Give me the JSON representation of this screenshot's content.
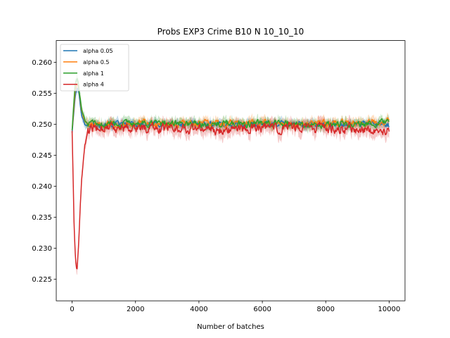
{
  "chart_data": {
    "type": "line",
    "title": "Probs EXP3 Crime B10 N 10_10_10",
    "xlabel": "Number of batches",
    "ylabel": "",
    "xlim": [
      -500,
      10500
    ],
    "ylim": [
      0.2215,
      0.2635
    ],
    "x_ticks": [
      0,
      2000,
      4000,
      6000,
      8000,
      10000
    ],
    "x_tick_labels": [
      "0",
      "2000",
      "4000",
      "6000",
      "8000",
      "10000"
    ],
    "y_ticks": [
      0.225,
      0.23,
      0.235,
      0.24,
      0.245,
      0.25,
      0.255,
      0.26
    ],
    "y_tick_labels": [
      "0.225",
      "0.230",
      "0.235",
      "0.240",
      "0.245",
      "0.250",
      "0.255",
      "0.260"
    ],
    "grid": false,
    "legend_position": "top-left",
    "confidence_band": true,
    "series": [
      {
        "name": "alpha 0.05",
        "color": "#1f77b4",
        "x": [
          0,
          50,
          100,
          150,
          200,
          250,
          300,
          400,
          500,
          700,
          1000,
          2000,
          3000,
          4000,
          5000,
          6000,
          7000,
          8000,
          9000,
          10000
        ],
        "y": [
          0.2487,
          0.2515,
          0.2545,
          0.2558,
          0.2555,
          0.2535,
          0.2515,
          0.25,
          0.2498,
          0.25,
          0.25,
          0.25,
          0.25,
          0.2501,
          0.25,
          0.2501,
          0.25,
          0.25,
          0.2501,
          0.25
        ]
      },
      {
        "name": "alpha 0.5",
        "color": "#ff7f0e",
        "x": [
          0,
          50,
          100,
          150,
          200,
          250,
          300,
          400,
          500,
          700,
          1000,
          2000,
          3000,
          4000,
          5000,
          6000,
          7000,
          8000,
          9000,
          10000
        ],
        "y": [
          0.249,
          0.2522,
          0.2555,
          0.2565,
          0.256,
          0.254,
          0.252,
          0.2505,
          0.25,
          0.2499,
          0.25,
          0.2502,
          0.25,
          0.2501,
          0.25,
          0.2502,
          0.25,
          0.2501,
          0.2502,
          0.2505
        ]
      },
      {
        "name": "alpha 1",
        "color": "#2ca02c",
        "x": [
          0,
          50,
          100,
          150,
          200,
          250,
          300,
          400,
          500,
          700,
          1000,
          2000,
          3000,
          4000,
          5000,
          6000,
          7000,
          8000,
          9000,
          10000
        ],
        "y": [
          0.2492,
          0.253,
          0.2565,
          0.2575,
          0.2565,
          0.2545,
          0.2525,
          0.2505,
          0.25,
          0.25,
          0.25,
          0.2499,
          0.2502,
          0.25,
          0.2501,
          0.25,
          0.2501,
          0.25,
          0.25,
          0.2503
        ]
      },
      {
        "name": "alpha 4",
        "color": "#d62728",
        "x": [
          0,
          30,
          60,
          100,
          130,
          160,
          200,
          250,
          300,
          350,
          400,
          450,
          500,
          600,
          700,
          800,
          1000,
          1500,
          2000,
          3000,
          4000,
          5000,
          6000,
          7000,
          8000,
          9000,
          10000
        ],
        "y": [
          0.249,
          0.242,
          0.234,
          0.229,
          0.227,
          0.2265,
          0.23,
          0.236,
          0.241,
          0.244,
          0.2465,
          0.2478,
          0.2485,
          0.249,
          0.2493,
          0.2495,
          0.2496,
          0.2495,
          0.2494,
          0.2494,
          0.2492,
          0.2492,
          0.2494,
          0.2494,
          0.2493,
          0.2493,
          0.249
        ]
      }
    ]
  }
}
